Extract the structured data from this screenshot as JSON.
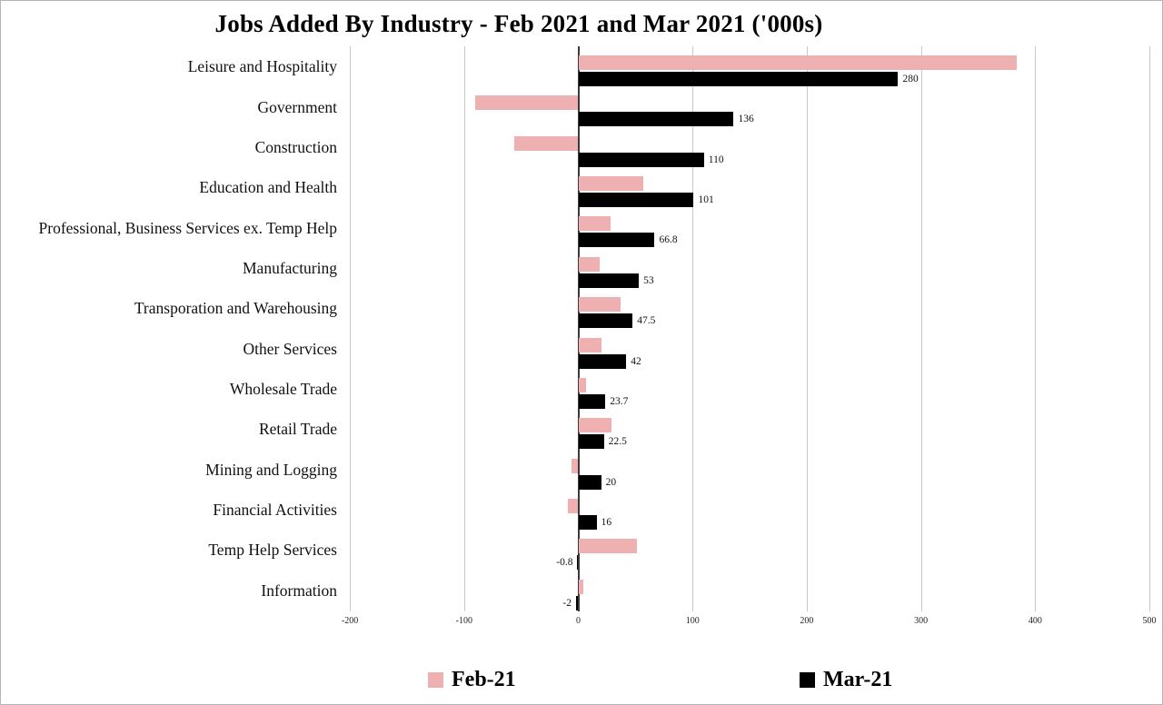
{
  "title": "Jobs Added By Industry - Feb 2021 and Mar 2021 ('000s)",
  "legend": [
    {
      "label": "Feb-21",
      "color": "#EFB0B2"
    },
    {
      "label": "Mar-21",
      "color": "#000000"
    }
  ],
  "colors": {
    "background": "#FFFFFF",
    "canvas_border": "#B5B5B5",
    "gridline": "#C9C9C9",
    "zero_line": "#3A3A3A",
    "feb_bar": "#EFB0B2",
    "mar_bar": "#000000",
    "text": "#111111"
  },
  "chart_data": {
    "type": "bar",
    "orientation": "horizontal",
    "title": "Jobs Added By Industry - Feb 2021 and Mar 2021 ('000s)",
    "categories": [
      "Leisure and Hospitality",
      "Government",
      "Construction",
      "Education and Health",
      "Professional, Business Services ex. Temp Help",
      "Manufacturing",
      "Transporation and Warehousing",
      "Other Services",
      "Wholesale Trade",
      "Retail Trade",
      "Mining and Logging",
      "Financial Activities",
      "Temp Help Services",
      "Information"
    ],
    "series": [
      {
        "name": "Feb-21",
        "color": "#EFB0B2",
        "values": [
          384,
          -90,
          -56,
          57,
          28,
          19,
          37,
          20,
          7,
          29,
          -6,
          -9,
          51,
          4
        ],
        "data_labels": [
          "",
          "",
          "",
          "",
          "",
          "",
          "",
          "",
          "",
          "",
          "",
          "",
          "",
          ""
        ]
      },
      {
        "name": "Mar-21",
        "color": "#000000",
        "values": [
          280,
          136,
          110,
          101,
          66.8,
          53,
          47.5,
          42,
          23.7,
          22.5,
          20,
          16,
          -0.8,
          -2
        ],
        "data_labels": [
          "280",
          "136",
          "110",
          "101",
          "66.8",
          "53",
          "47.5",
          "42",
          "23.7",
          "22.5",
          "20",
          "16",
          "-0.8",
          "-2"
        ]
      }
    ],
    "x_axis": {
      "range": [
        -200,
        500
      ],
      "ticks": [
        -200,
        -100,
        0,
        100,
        200,
        300,
        400,
        500
      ],
      "tick_labels": [
        "-200",
        "-100",
        "0",
        "100",
        "200",
        "300",
        "400",
        "500"
      ]
    },
    "y_axis_label": "",
    "x_axis_label": "",
    "grid": true,
    "legend_position": "bottom"
  }
}
